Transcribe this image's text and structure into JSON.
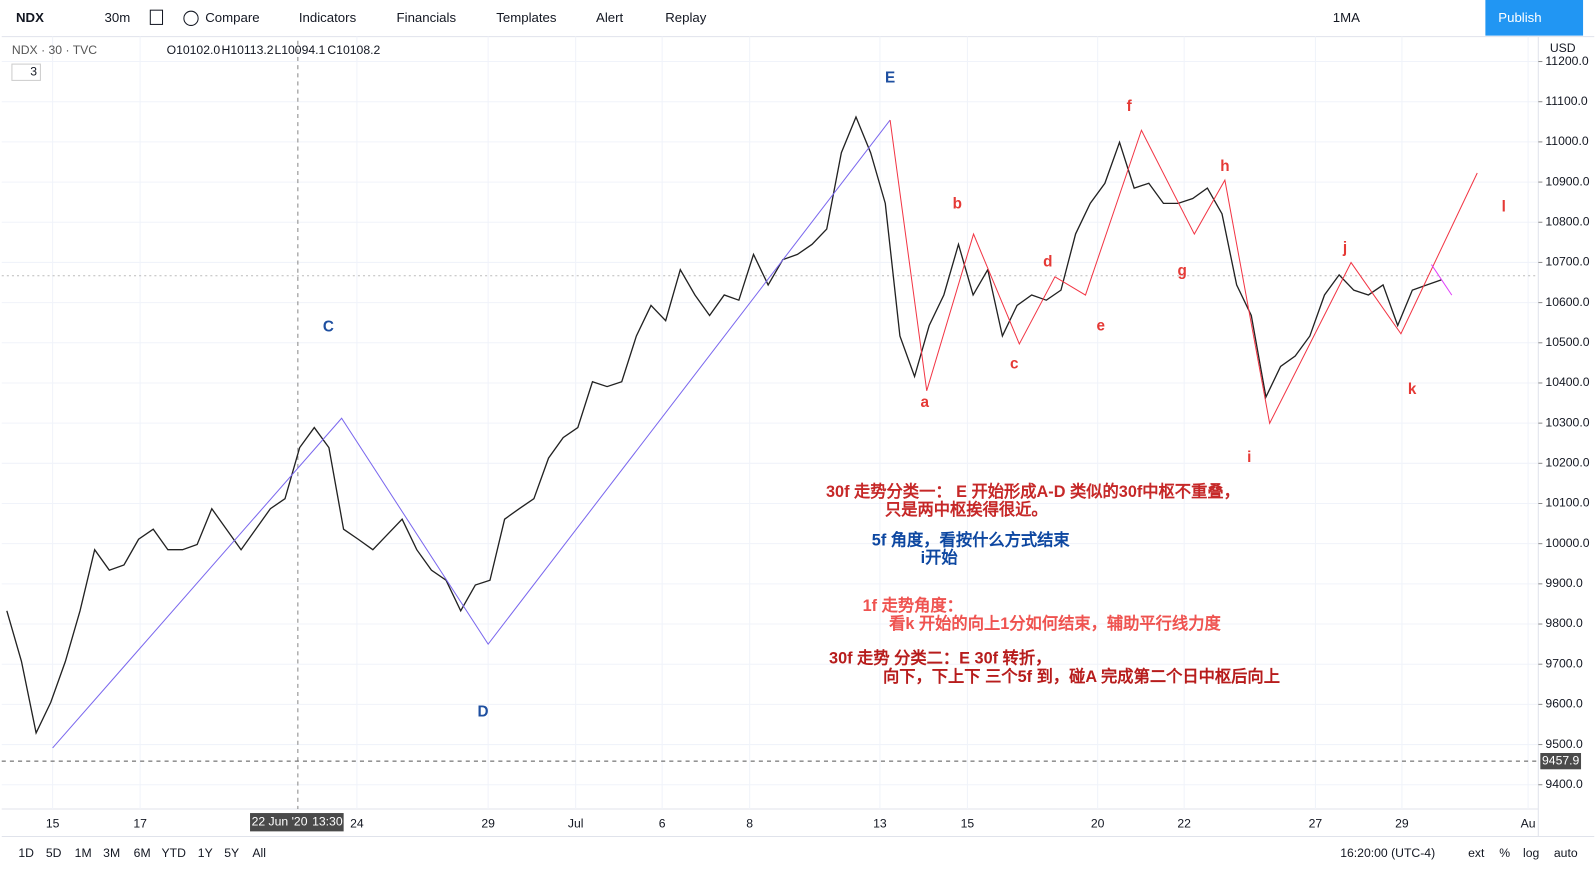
{
  "toolbar": {
    "symbol": "NDX",
    "interval": "30m",
    "compare": "Compare",
    "indicators": "Indicators",
    "financials": "Financials",
    "templates": "Templates",
    "alert": "Alert",
    "replay": "Replay",
    "ma": "1MA",
    "publish": "Publish"
  },
  "legend": {
    "symbol": "NDX · 30 · TVC",
    "open": "O10102.0",
    "high": "H10113.2",
    "low": "L10094.1",
    "close": "C10108.2",
    "indicator_count": "3"
  },
  "price_axis": {
    "currency": "USD",
    "ylim": [
      9327,
      11262
    ],
    "ticks": [
      {
        "value": 9400,
        "label": "9400.0"
      },
      {
        "value": 9500,
        "label": "9500.0"
      },
      {
        "value": 9600,
        "label": "9600.0"
      },
      {
        "value": 9700,
        "label": "9700.0"
      },
      {
        "value": 9800,
        "label": "9800.0"
      },
      {
        "value": 9900,
        "label": "9900.0"
      },
      {
        "value": 10000,
        "label": "10000.0"
      },
      {
        "value": 10100,
        "label": "10100.0"
      },
      {
        "value": 10200,
        "label": "10200.0"
      },
      {
        "value": 10300,
        "label": "10300.0"
      },
      {
        "value": 10400,
        "label": "10400.0"
      },
      {
        "value": 10500,
        "label": "10500.0"
      },
      {
        "value": 10600,
        "label": "10600.0"
      },
      {
        "value": 10700,
        "label": "10700.0"
      },
      {
        "value": 10800,
        "label": "10800.0"
      },
      {
        "value": 10900,
        "label": "10900.0"
      },
      {
        "value": 11000,
        "label": "11000.0"
      },
      {
        "value": 11100,
        "label": "11100.0"
      },
      {
        "value": 11200,
        "label": "11200.0"
      }
    ],
    "crosshair_price": 9457.9
  },
  "time_axis": {
    "labels": [
      "15",
      "17",
      "24",
      "29",
      "Jul",
      "6",
      "8",
      "13",
      "15",
      "20",
      "22",
      "27",
      "29",
      "Au"
    ],
    "crosshair_date": "22 Jun '20",
    "crosshair_time": "13:30"
  },
  "price_series": {
    "closes": [
      9833,
      9707,
      9529,
      9605,
      9707,
      9833,
      9985,
      9934,
      9947,
      10011,
      10036,
      9985,
      9985,
      9998,
      10087,
      10036,
      9985,
      10036,
      10087,
      10112,
      10239,
      10289,
      10239,
      10036,
      10011,
      9985,
      10023,
      10061,
      9985,
      9934,
      9909,
      9833,
      9897,
      9909,
      10061,
      10087,
      10112,
      10213,
      10264,
      10289,
      10403,
      10391,
      10403,
      10517,
      10593,
      10555,
      10682,
      10619,
      10568,
      10619,
      10606,
      10720,
      10644,
      10707,
      10720,
      10745,
      10783,
      10973,
      11062,
      10973,
      10847,
      10517,
      10416,
      10543,
      10619,
      10745,
      10619,
      10682,
      10517,
      10593,
      10619,
      10606,
      10631,
      10771,
      10847,
      10897,
      10999,
      10885,
      10897,
      10847,
      10847,
      10859,
      10885,
      10821,
      10644,
      10568,
      10365,
      10441,
      10467,
      10517,
      10619,
      10669,
      10631,
      10619,
      10644,
      10543,
      10631,
      10644,
      10657
    ]
  },
  "wave_labels": [
    "C",
    "D",
    "E",
    "a",
    "b",
    "c",
    "d",
    "e",
    "f",
    "g",
    "h",
    "i",
    "j",
    "k",
    "l"
  ],
  "notes": [
    {
      "color": "#c62828",
      "lines": [
        "30f 走势分类一：  E 开始形成A-D 类似的30f中枢不重叠，",
        "只是两中枢挨得很近。"
      ]
    },
    {
      "color": "#0d47a1",
      "lines": [
        "5f 角度，看按什么方式结束",
        "i开始"
      ]
    },
    {
      "color": "#ef5350",
      "lines": [
        "1f 走势角度：",
        "看k 开始的向上1分如何结束，辅助平行线力度"
      ]
    },
    {
      "color": "#b71c1c",
      "lines": [
        "30f 走势 分类二：E 30f 转折，",
        "向下，下上下 三个5f 到，碰A 完成第二个日中枢后向上"
      ]
    }
  ],
  "bottom_bar": {
    "ranges": [
      "1D",
      "5D",
      "1M",
      "3M",
      "6M",
      "YTD",
      "1Y",
      "5Y",
      "All"
    ],
    "clock": "16:20:00 (UTC-4)",
    "ext": "ext",
    "percent": "%",
    "log": "log",
    "auto": "auto"
  }
}
